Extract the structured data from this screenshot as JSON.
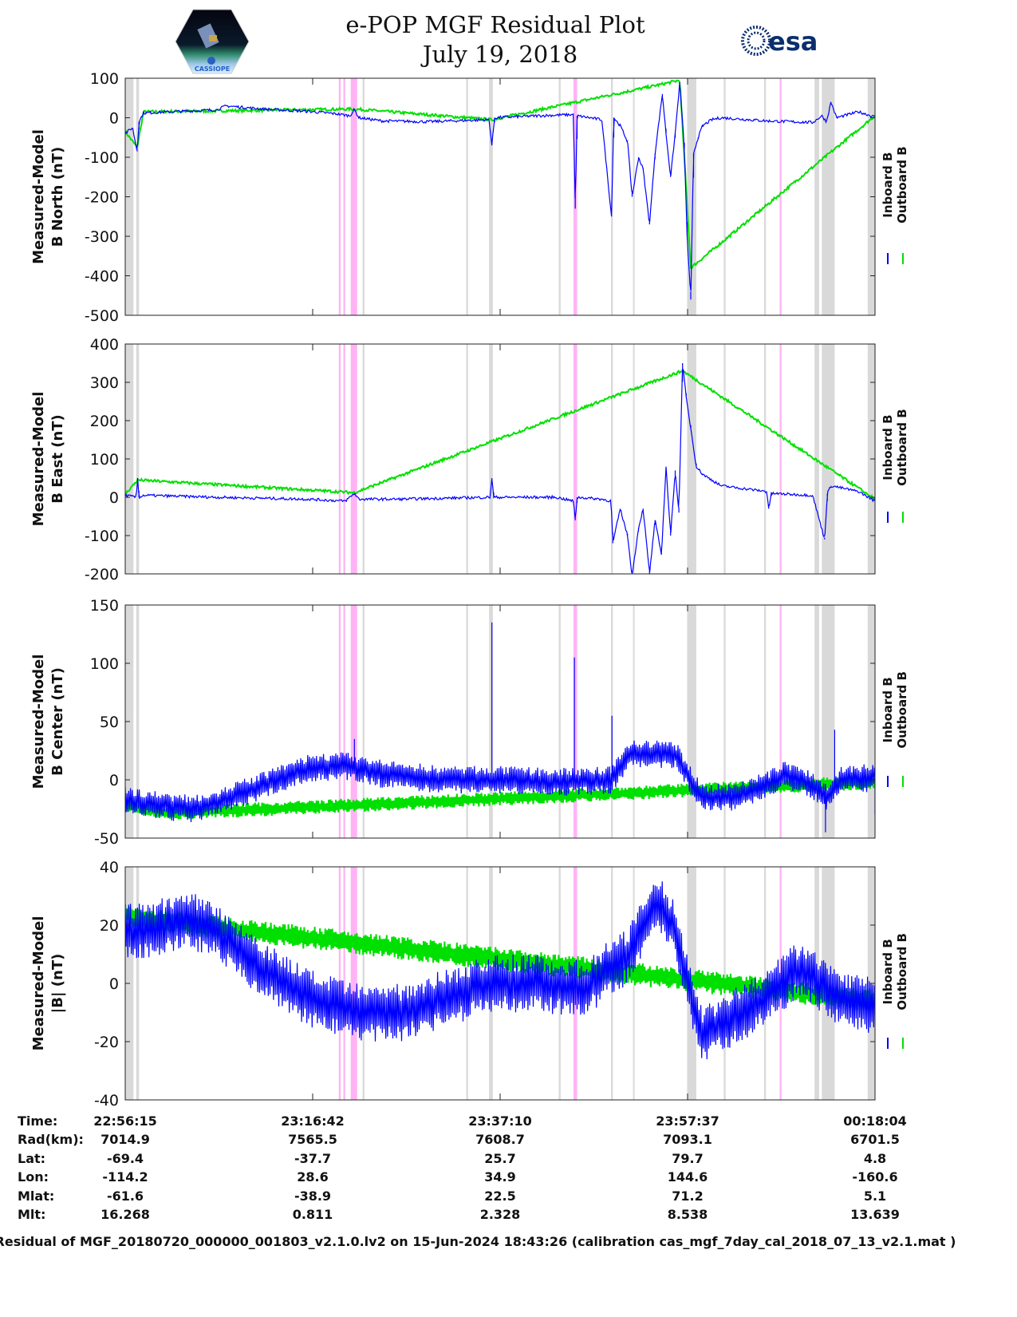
{
  "header": {
    "title": "e-POP MGF Residual Plot",
    "subtitle": "July 19, 2018",
    "left_logo_text": "CASSIOPE",
    "right_logo_text": "esa"
  },
  "chart_data": {
    "type": "line",
    "x_unit": "minutes since 22:56:15",
    "xlim": [
      0,
      81.8
    ],
    "x_ticks": [
      0,
      20.45,
      40.9,
      61.35,
      81.8
    ],
    "legend": [
      "Inboard B",
      "Outboard B"
    ],
    "legend_placement": "right",
    "colors": {
      "inboard": "#0000ff",
      "outboard": "#00e000",
      "gap_gray": "#d9d9d9",
      "gap_pink": "#ffb3f5"
    },
    "shaded_regions": [
      {
        "t": [
          0,
          0.9
        ],
        "kind": "gray"
      },
      {
        "t": [
          1.2,
          1.5
        ],
        "kind": "gray"
      },
      {
        "t": [
          23.3,
          23.5
        ],
        "kind": "pink"
      },
      {
        "t": [
          23.8,
          24.0
        ],
        "kind": "pink"
      },
      {
        "t": [
          24.6,
          25.3
        ],
        "kind": "pink"
      },
      {
        "t": [
          25.9,
          26.1
        ],
        "kind": "gray"
      },
      {
        "t": [
          37.2,
          37.4
        ],
        "kind": "gray"
      },
      {
        "t": [
          39.7,
          40.1
        ],
        "kind": "gray"
      },
      {
        "t": [
          47.3,
          47.5
        ],
        "kind": "gray"
      },
      {
        "t": [
          48.9,
          49.3
        ],
        "kind": "pink"
      },
      {
        "t": [
          53.0,
          53.2
        ],
        "kind": "gray"
      },
      {
        "t": [
          55.4,
          55.5
        ],
        "kind": "gray"
      },
      {
        "t": [
          61.3,
          62.3
        ],
        "kind": "gray"
      },
      {
        "t": [
          65.3,
          65.5
        ],
        "kind": "gray"
      },
      {
        "t": [
          69.7,
          69.9
        ],
        "kind": "gray"
      },
      {
        "t": [
          71.4,
          71.6
        ],
        "kind": "pink"
      },
      {
        "t": [
          75.2,
          75.7
        ],
        "kind": "gray"
      },
      {
        "t": [
          76.0,
          77.4
        ],
        "kind": "gray"
      },
      {
        "t": [
          81.0,
          81.8
        ],
        "kind": "gray"
      }
    ],
    "panels": [
      {
        "ylabel": [
          "Measured-Model",
          "B North (nT)"
        ],
        "ylim": [
          -500,
          100
        ],
        "yticks": [
          100,
          0,
          -100,
          -200,
          -300,
          -400,
          -500
        ],
        "style": "line",
        "series": [
          {
            "name": "Inboard B",
            "points": [
              [
                0,
                -40
              ],
              [
                0.8,
                -25
              ],
              [
                1.3,
                -85
              ],
              [
                1.5,
                -10
              ],
              [
                2,
                12
              ],
              [
                5,
                15
              ],
              [
                10,
                20
              ],
              [
                11,
                30
              ],
              [
                15,
                22
              ],
              [
                20,
                16
              ],
              [
                23,
                10
              ],
              [
                24.5,
                5
              ],
              [
                25,
                20
              ],
              [
                25.5,
                0
              ],
              [
                28,
                -8
              ],
              [
                33,
                -10
              ],
              [
                39.7,
                -5
              ],
              [
                40,
                -70
              ],
              [
                40.3,
                0
              ],
              [
                45,
                5
              ],
              [
                48.9,
                8
              ],
              [
                49.1,
                -230
              ],
              [
                49.3,
                5
              ],
              [
                52,
                -5
              ],
              [
                53.05,
                -250
              ],
              [
                53.3,
                0
              ],
              [
                54,
                -20
              ],
              [
                54.8,
                -60
              ],
              [
                55.3,
                -200
              ],
              [
                56,
                -100
              ],
              [
                56.5,
                -130
              ],
              [
                57.2,
                -270
              ],
              [
                57.8,
                -90
              ],
              [
                58.6,
                60
              ],
              [
                59,
                -40
              ],
              [
                59.5,
                -150
              ],
              [
                60,
                -40
              ],
              [
                60.5,
                90
              ],
              [
                61,
                -80
              ],
              [
                61.3,
                -300
              ],
              [
                61.7,
                -460
              ],
              [
                62,
                -90
              ],
              [
                62.5,
                -50
              ],
              [
                63,
                -20
              ],
              [
                64,
                -5
              ],
              [
                65,
                0
              ],
              [
                70,
                -8
              ],
              [
                75,
                -12
              ],
              [
                76,
                5
              ],
              [
                76.5,
                -10
              ],
              [
                77,
                40
              ],
              [
                77.6,
                0
              ],
              [
                80,
                15
              ],
              [
                81.8,
                2
              ]
            ]
          },
          {
            "name": "Outboard B",
            "points": [
              [
                0,
                -35
              ],
              [
                1.3,
                -75
              ],
              [
                2,
                15
              ],
              [
                25,
                22
              ],
              [
                40,
                -5
              ],
              [
                58.6,
                85
              ],
              [
                60.5,
                95
              ],
              [
                61.7,
                -380
              ],
              [
                81.8,
                5
              ]
            ]
          }
        ]
      },
      {
        "ylabel": [
          "Measured-Model",
          "B East (nT)"
        ],
        "ylim": [
          -200,
          400
        ],
        "yticks": [
          400,
          300,
          200,
          100,
          0,
          -100,
          -200
        ],
        "style": "line",
        "series": [
          {
            "name": "Inboard B",
            "points": [
              [
                0,
                5
              ],
              [
                1.2,
                0
              ],
              [
                1.35,
                50
              ],
              [
                1.5,
                0
              ],
              [
                2,
                5
              ],
              [
                10,
                0
              ],
              [
                20,
                -5
              ],
              [
                24,
                -10
              ],
              [
                25,
                10
              ],
              [
                25.5,
                -5
              ],
              [
                30,
                -5
              ],
              [
                39.8,
                0
              ],
              [
                40,
                50
              ],
              [
                40.2,
                0
              ],
              [
                47,
                0
              ],
              [
                48.9,
                -10
              ],
              [
                49.1,
                -60
              ],
              [
                49.3,
                0
              ],
              [
                52,
                -5
              ],
              [
                53,
                -10
              ],
              [
                53.2,
                -120
              ],
              [
                54,
                -30
              ],
              [
                54.8,
                -100
              ],
              [
                55.3,
                -205
              ],
              [
                56,
                -80
              ],
              [
                56.5,
                -30
              ],
              [
                57.2,
                -200
              ],
              [
                57.8,
                -60
              ],
              [
                58.5,
                -150
              ],
              [
                59,
                80
              ],
              [
                59.5,
                -100
              ],
              [
                60,
                70
              ],
              [
                60.4,
                -40
              ],
              [
                60.8,
                350
              ],
              [
                61.2,
                260
              ],
              [
                61.7,
                180
              ],
              [
                62.3,
                80
              ],
              [
                63,
                60
              ],
              [
                65,
                30
              ],
              [
                70,
                15
              ],
              [
                70.2,
                -30
              ],
              [
                70.5,
                10
              ],
              [
                75,
                5
              ],
              [
                76.3,
                -110
              ],
              [
                76.6,
                10
              ],
              [
                77,
                30
              ],
              [
                80,
                15
              ],
              [
                81.8,
                -10
              ]
            ]
          },
          {
            "name": "Outboard B",
            "points": [
              [
                0,
                8
              ],
              [
                1.35,
                45
              ],
              [
                25,
                12
              ],
              [
                60.8,
                330
              ],
              [
                81.8,
                -5
              ]
            ]
          }
        ]
      },
      {
        "ylabel": [
          "Measured-Model",
          "B Center (nT)"
        ],
        "ylim": [
          -50,
          150
        ],
        "yticks": [
          150,
          100,
          50,
          0,
          -50
        ],
        "style": "band",
        "series": [
          {
            "name": "Inboard B",
            "center": [
              [
                0,
                -18
              ],
              [
                4,
                -22
              ],
              [
                7,
                -25
              ],
              [
                10,
                -20
              ],
              [
                15,
                -5
              ],
              [
                20,
                10
              ],
              [
                24,
                12
              ],
              [
                28,
                5
              ],
              [
                35,
                0
              ],
              [
                40,
                0
              ],
              [
                47,
                -2
              ],
              [
                53,
                0
              ],
              [
                55,
                22
              ],
              [
                60,
                22
              ],
              [
                61.5,
                2
              ],
              [
                63,
                -15
              ],
              [
                66,
                -15
              ],
              [
                70,
                -5
              ],
              [
                72,
                5
              ],
              [
                75,
                -5
              ],
              [
                76.5,
                -15
              ],
              [
                78,
                0
              ],
              [
                81.8,
                2
              ]
            ],
            "half_width": 12,
            "spikes": [
              [
                25,
                35
              ],
              [
                40,
                135
              ],
              [
                49,
                105
              ],
              [
                53.1,
                55
              ],
              [
                76.4,
                -45
              ],
              [
                77.4,
                43
              ],
              [
                81.8,
                -30
              ]
            ]
          },
          {
            "name": "Outboard B",
            "center": [
              [
                0,
                -22
              ],
              [
                4,
                -28
              ],
              [
                7,
                -28
              ],
              [
                81.8,
                -2
              ]
            ],
            "half_width": 6
          }
        ]
      },
      {
        "ylabel": [
          "Measured-Model",
          "|B| (nT)"
        ],
        "ylim": [
          -40,
          40
        ],
        "yticks": [
          40,
          20,
          0,
          -20,
          -40
        ],
        "style": "band",
        "series": [
          {
            "name": "Inboard B",
            "center": [
              [
                0,
                17
              ],
              [
                5,
                20
              ],
              [
                7,
                22
              ],
              [
                10,
                18
              ],
              [
                15,
                5
              ],
              [
                20,
                -5
              ],
              [
                25,
                -10
              ],
              [
                30,
                -10
              ],
              [
                35,
                -5
              ],
              [
                40,
                0
              ],
              [
                45,
                0
              ],
              [
                50,
                -2
              ],
              [
                55,
                10
              ],
              [
                58,
                28
              ],
              [
                60,
                18
              ],
              [
                62,
                -8
              ],
              [
                63,
                -18
              ],
              [
                65,
                -14
              ],
              [
                70,
                -5
              ],
              [
                73,
                4
              ],
              [
                75,
                2
              ],
              [
                78,
                -5
              ],
              [
                81.8,
                -8
              ]
            ],
            "half_width": 10,
            "spikes": []
          },
          {
            "name": "Outboard B",
            "center": [
              [
                0,
                24
              ],
              [
                1.5,
                22
              ],
              [
                2,
                22
              ],
              [
                81.8,
                -6
              ]
            ],
            "half_width": 4
          }
        ]
      }
    ]
  },
  "footer": {
    "row_labels": [
      "Time:",
      "Rad(km):",
      "Lat:",
      "Lon:",
      "Mlat:",
      "Mlt:"
    ],
    "columns": [
      [
        "22:56:15",
        "7014.9",
        "-69.4",
        "-114.2",
        "-61.6",
        "16.268"
      ],
      [
        "23:16:42",
        "7565.5",
        "-37.7",
        "28.6",
        "-38.9",
        "0.811"
      ],
      [
        "23:37:10",
        "7608.7",
        "25.7",
        "34.9",
        "22.5",
        "2.328"
      ],
      [
        "23:57:37",
        "7093.1",
        "79.7",
        "144.6",
        "71.2",
        "8.538"
      ],
      [
        "00:18:04",
        "6701.5",
        "4.8",
        "-160.6",
        "5.1",
        "13.639"
      ]
    ],
    "caption": "Residual of MGF_20180720_000000_001803_v2.1.0.lv2 on 15-Jun-2024 18:43:26 (calibration cas_mgf_7day_cal_2018_07_13_v2.1.mat )"
  }
}
